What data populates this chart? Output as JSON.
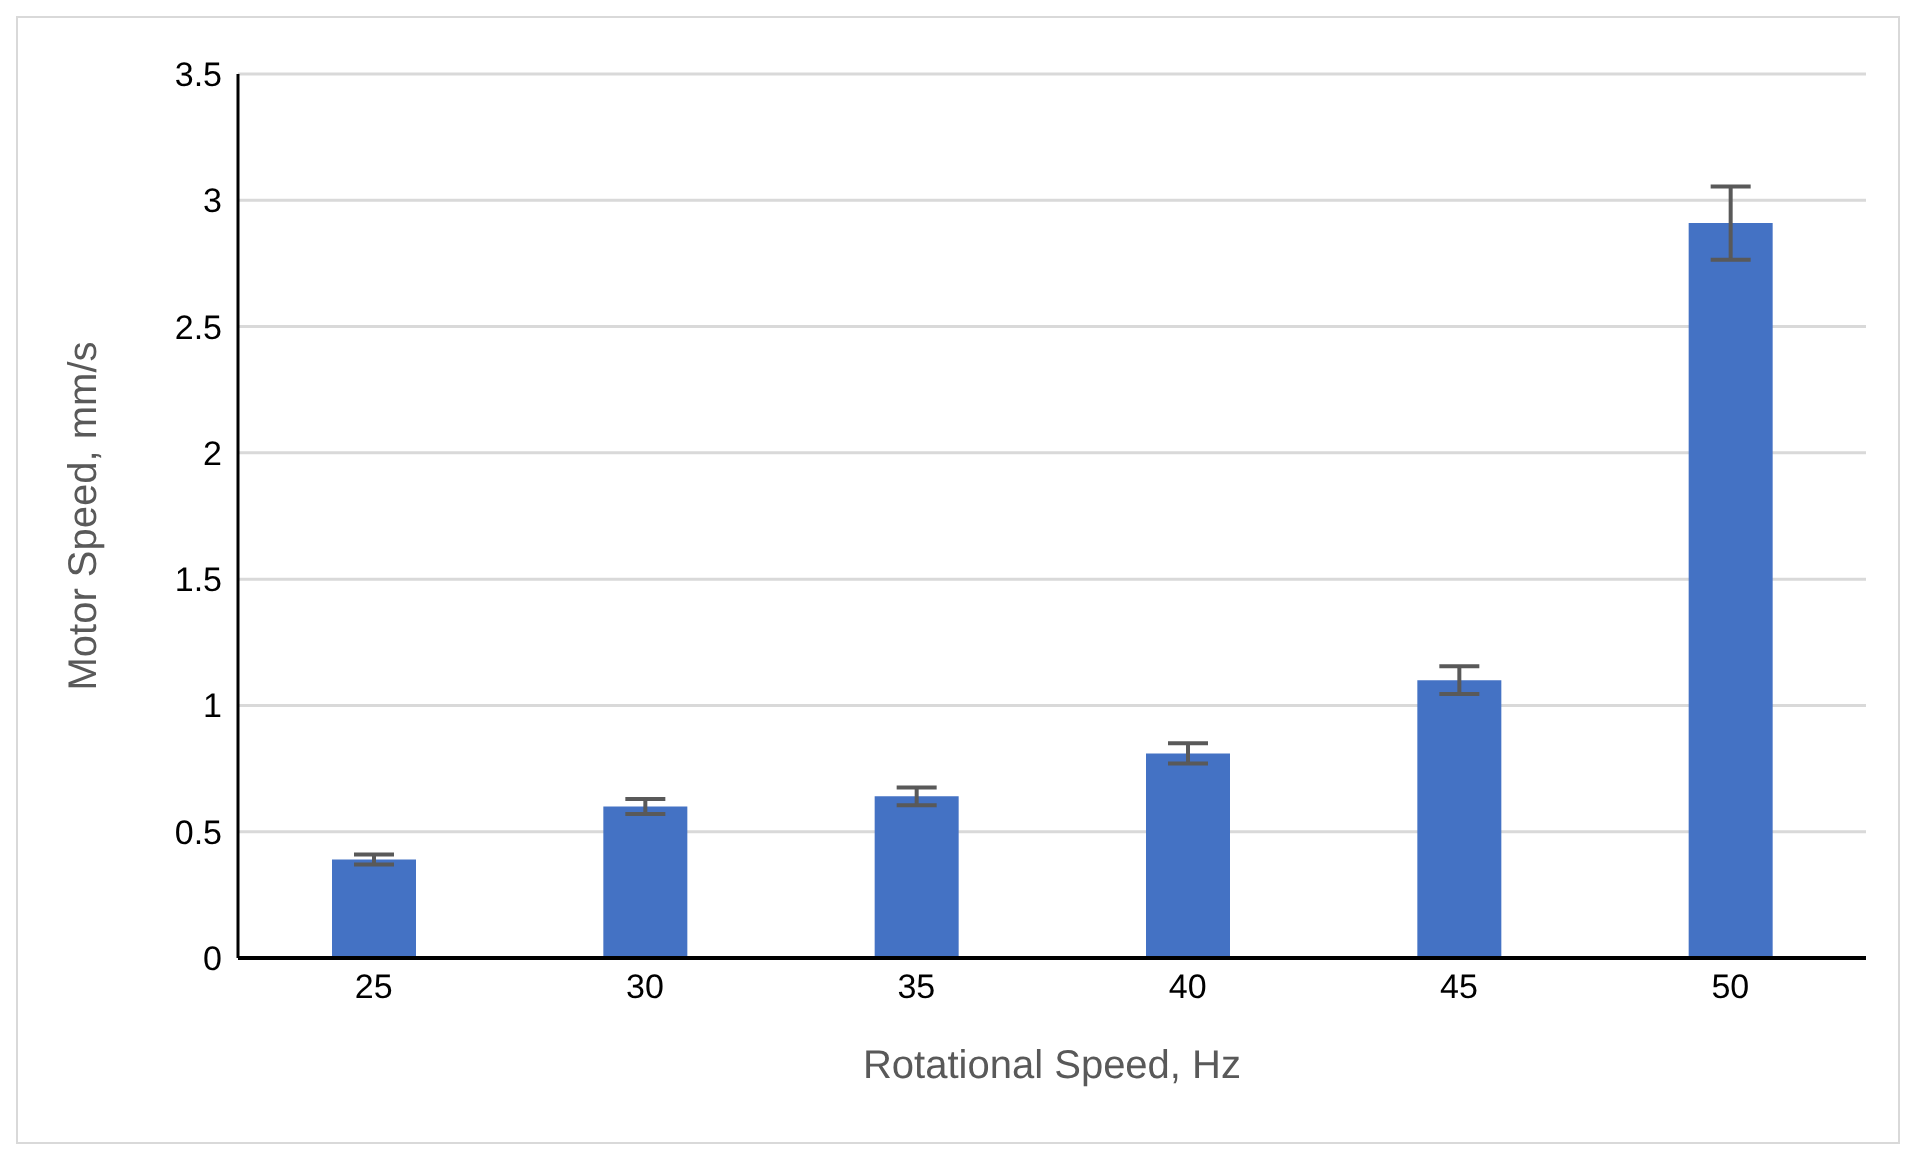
{
  "chart_data": {
    "type": "bar",
    "xlabel": "Rotational Speed, Hz",
    "ylabel": "Motor Speed, mm/s",
    "categories": [
      "25",
      "30",
      "35",
      "40",
      "45",
      "50"
    ],
    "values": [
      0.39,
      0.6,
      0.64,
      0.81,
      1.1,
      2.91
    ],
    "errors": [
      0.02,
      0.03,
      0.035,
      0.04,
      0.055,
      0.145
    ],
    "color": "#4472c4",
    "ylim": [
      0,
      3.5
    ],
    "yticks": [
      0,
      0.5,
      1,
      1.5,
      2,
      2.5,
      3,
      3.5
    ],
    "grid": "y"
  }
}
